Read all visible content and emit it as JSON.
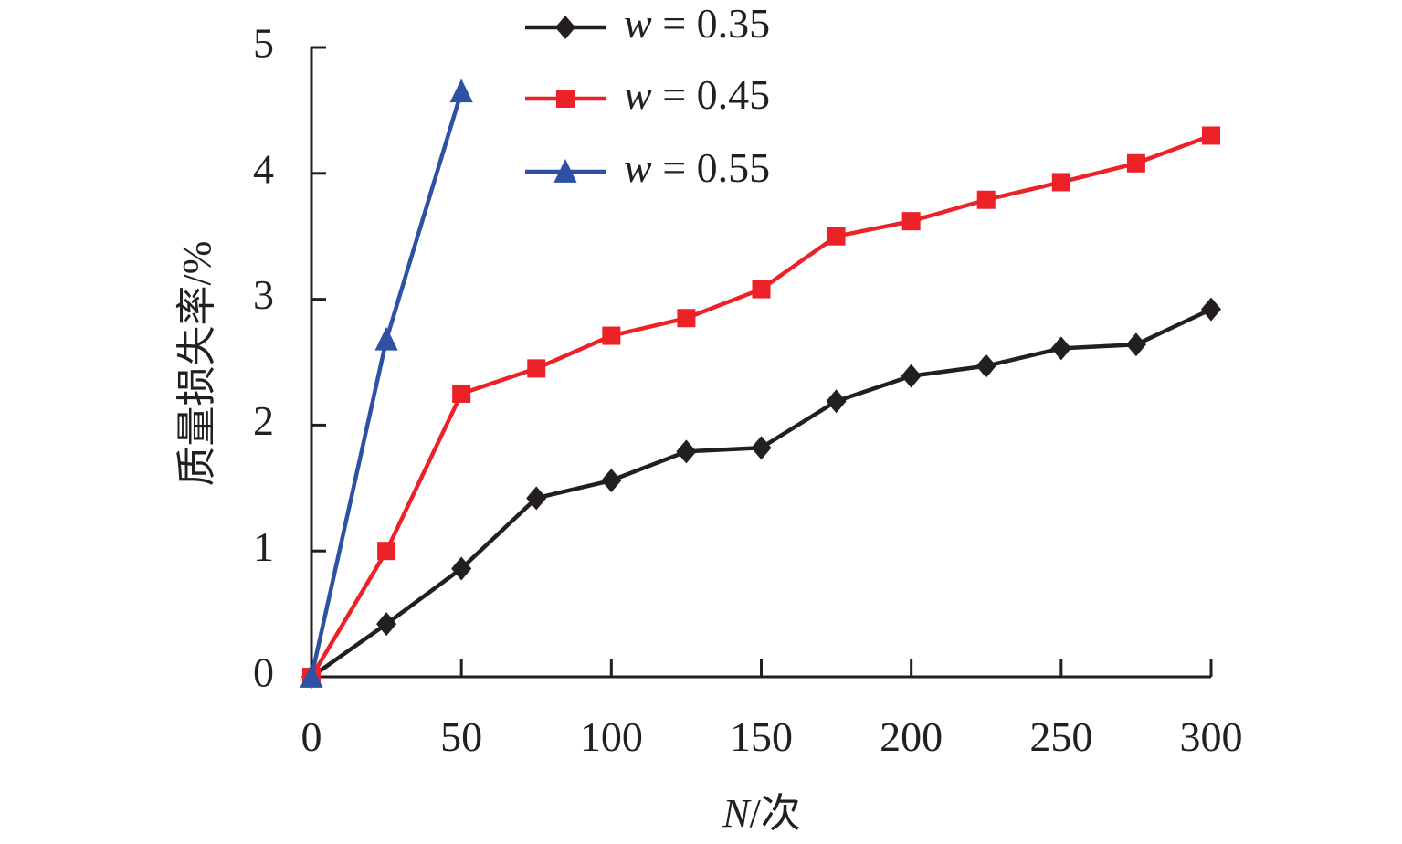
{
  "chart_data": {
    "type": "line",
    "title": "",
    "xlabel": {
      "var": "N",
      "unit": "/次"
    },
    "ylabel": "质量损失率/%",
    "xlim": [
      0,
      300
    ],
    "ylim": [
      0,
      5
    ],
    "xticks": [
      0,
      50,
      100,
      150,
      200,
      250,
      300
    ],
    "xtick_labels": [
      "0",
      "50",
      "100",
      "150",
      "200",
      "250",
      "300"
    ],
    "yticks": [
      0,
      1,
      2,
      3,
      4,
      5
    ],
    "ytick_labels": [
      "0",
      "1",
      "2",
      "3",
      "4",
      "5"
    ],
    "grid": false,
    "legend_position": "top-center",
    "series": [
      {
        "name": "w = 0.35",
        "legend_var": "w",
        "legend_value": " = 0.35",
        "color": "#231f20",
        "marker": "diamond",
        "x": [
          0,
          25,
          50,
          75,
          100,
          125,
          150,
          175,
          200,
          225,
          250,
          275,
          300
        ],
        "y": [
          0,
          0.42,
          0.86,
          1.42,
          1.56,
          1.79,
          1.82,
          2.19,
          2.39,
          2.47,
          2.61,
          2.64,
          2.92
        ]
      },
      {
        "name": "w = 0.45",
        "legend_var": "w",
        "legend_value": " = 0.45",
        "color": "#ed2228",
        "marker": "square",
        "x": [
          0,
          25,
          50,
          75,
          100,
          125,
          150,
          175,
          200,
          225,
          250,
          275,
          300
        ],
        "y": [
          0,
          1.0,
          2.25,
          2.45,
          2.71,
          2.85,
          3.08,
          3.5,
          3.62,
          3.79,
          3.93,
          4.08,
          4.3
        ]
      },
      {
        "name": "w = 0.55",
        "legend_var": "w",
        "legend_value": " = 0.55",
        "color": "#2e51a3",
        "marker": "triangle",
        "x": [
          0,
          25,
          50
        ],
        "y": [
          0,
          2.68,
          4.65
        ]
      }
    ]
  }
}
